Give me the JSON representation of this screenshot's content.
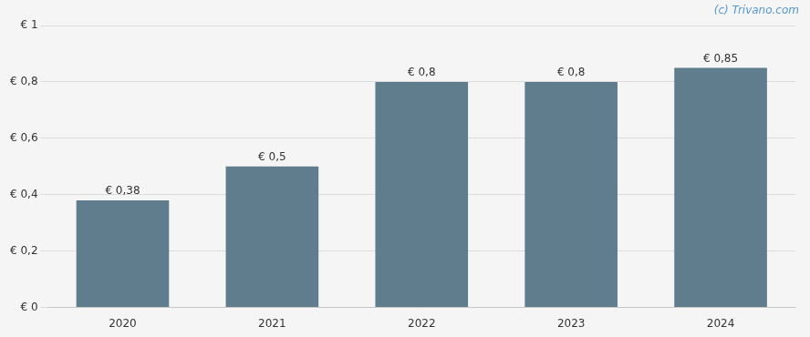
{
  "chart_data": {
    "type": "bar",
    "categories": [
      "2020",
      "2021",
      "2022",
      "2023",
      "2024"
    ],
    "values": [
      0.38,
      0.5,
      0.8,
      0.8,
      0.85
    ],
    "value_labels": [
      "€ 0,38",
      "€ 0,5",
      "€ 0,8",
      "€ 0,8",
      "€ 0,85"
    ],
    "data_labels": true,
    "color": "#5f7d8c",
    "ylim": [
      0,
      1.0
    ],
    "yticks": [
      {
        "value": 0,
        "label": "€ 0"
      },
      {
        "value": 0.2,
        "label": "€ 0,2"
      },
      {
        "value": 0.4,
        "label": "€ 0,4"
      },
      {
        "value": 0.6,
        "label": "€ 0,6"
      },
      {
        "value": 0.8,
        "label": "€ 0,8"
      },
      {
        "value": 1.0,
        "label": "€ 1"
      }
    ],
    "grid": true,
    "annotations": [
      "(c) Trivano.com"
    ]
  }
}
